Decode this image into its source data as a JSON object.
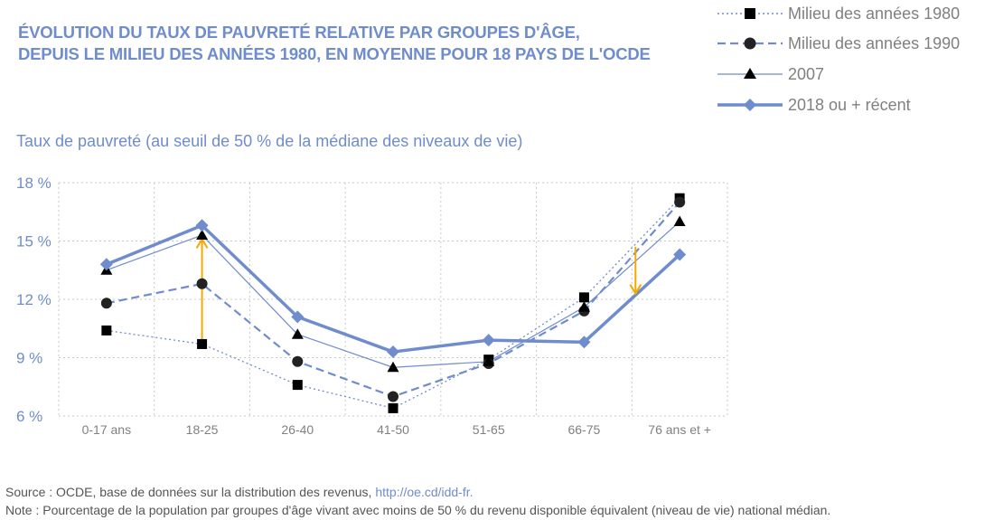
{
  "title_lines": [
    "ÉVOLUTION DU TAUX DE PAUVRETÉ RELATIVE PAR GROUPES D'ÂGE,",
    "DEPUIS LE MILIEU DES ANNÉES 1980, EN MOYENNE POUR 18 PAYS DE L'OCDE"
  ],
  "colors": {
    "series": "#6f8ccc",
    "marker_dark": "#000000",
    "arrow": "#f5a800",
    "grid": "#c8c8c8",
    "text_gray": "#808080"
  },
  "footer": {
    "source_prefix": "Source : OCDE, base de données sur la distribution des revenus, ",
    "source_link": "http://oe.cd/idd-fr.",
    "note": "Note : Pourcentage de la population par groupes d'âge vivant avec moins de 50 % du revenu disponible équivalent (niveau de vie) national médian."
  },
  "chart_data": {
    "type": "line",
    "ylabel": "Taux de pauvreté (au seuil de 50 % de la médiane des niveaux de vie)",
    "categories": [
      "0-17 ans",
      "18-25",
      "26-40",
      "41-50",
      "51-65",
      "66-75",
      "76 ans et +"
    ],
    "ylim": [
      6,
      18
    ],
    "yticks": [
      6,
      9,
      12,
      15,
      18
    ],
    "ytick_labels": [
      "6 %",
      "9 %",
      "12 %",
      "15 %",
      "18 %"
    ],
    "grid": "dotted",
    "legend_position": "top-right",
    "series": [
      {
        "name": "Milieu des années 1980",
        "marker": "square",
        "line": "dotted",
        "values": [
          10.4,
          9.7,
          7.6,
          6.4,
          8.9,
          12.1,
          17.2
        ]
      },
      {
        "name": "Milieu des années 1990",
        "marker": "circle",
        "line": "dashed",
        "values": [
          11.8,
          12.8,
          8.8,
          7.0,
          8.7,
          11.4,
          17.0
        ]
      },
      {
        "name": "2007",
        "marker": "triangle",
        "line": "thin",
        "values": [
          13.5,
          15.3,
          10.2,
          8.5,
          8.8,
          11.6,
          16.0
        ]
      },
      {
        "name": "2018 ou + récent",
        "marker": "diamond",
        "line": "thick",
        "values": [
          13.8,
          15.8,
          11.1,
          9.3,
          9.9,
          9.8,
          14.3
        ]
      }
    ],
    "annotations": [
      {
        "type": "arrow",
        "direction": "up",
        "category": "18-25",
        "from": 9.9,
        "to": 15.1
      },
      {
        "type": "arrow",
        "direction": "down",
        "between": [
          "66-75",
          "76 ans et +"
        ],
        "from": 14.7,
        "to": 12.3
      }
    ]
  }
}
